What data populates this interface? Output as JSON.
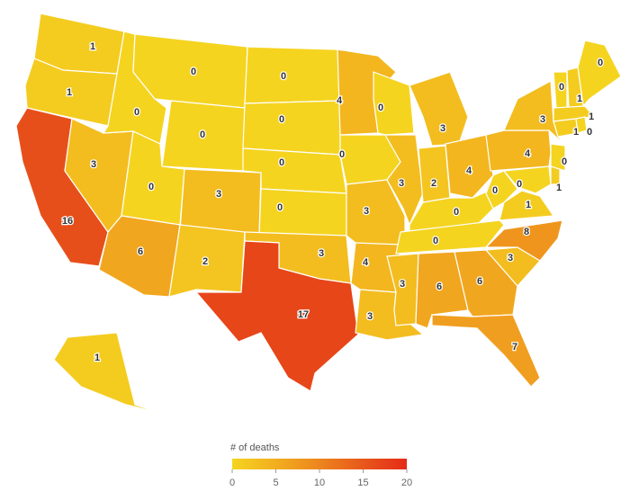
{
  "chart_data": {
    "type": "choropleth",
    "values": [
      1,
      1,
      16,
      3,
      0,
      0,
      0,
      0,
      3,
      6,
      2,
      0,
      0,
      0,
      0,
      3,
      17,
      4,
      0,
      3,
      4,
      3,
      0,
      3,
      3,
      2,
      4,
      0,
      0,
      3,
      6,
      6,
      7,
      3,
      8,
      1,
      0,
      4,
      3,
      0,
      1,
      0,
      0,
      1,
      1,
      0,
      1,
      0,
      1
    ],
    "legend_title": "# of deaths",
    "colorlim": [
      0,
      20
    ],
    "colorticks": [
      0,
      5,
      10,
      15,
      20
    ],
    "colors": [
      "#f5d420",
      "#f2ae1f",
      "#ed851e",
      "#e8581b",
      "#e52b17"
    ]
  }
}
